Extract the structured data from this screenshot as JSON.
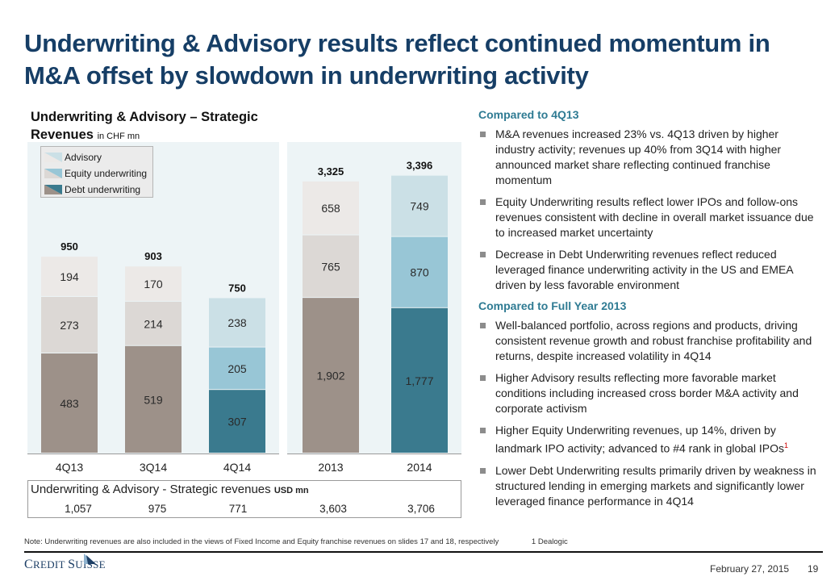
{
  "title": "Underwriting & Advisory results reflect continued momentum in M&A offset by slowdown in underwriting activity",
  "chart_title": "Underwriting & Advisory – Strategic Revenues",
  "chart_unit": "in CHF mn",
  "legend": [
    {
      "label": "Advisory"
    },
    {
      "label": "Equity underwriting"
    },
    {
      "label": "Debt underwriting"
    }
  ],
  "colors": {
    "debt_gray": "#9d9189",
    "equity_gray": "#dcd8d5",
    "advisory_gray": "#ece9e7",
    "debt_blue": "#3a7a8e",
    "equity_blue": "#98c6d6",
    "advisory_blue": "#cbe0e6",
    "panel_bg": "#edf4f6",
    "title_navy": "#163e66",
    "section_teal": "#2f7b93"
  },
  "chart_data": {
    "type": "bar",
    "stacked": true,
    "title": "Underwriting & Advisory – Strategic Revenues in CHF mn",
    "xlabel": "",
    "ylabel": "",
    "categories": [
      "4Q13",
      "3Q14",
      "4Q14",
      "2013",
      "2014"
    ],
    "series": [
      {
        "name": "Debt underwriting",
        "values": [
          483,
          519,
          307,
          1902,
          1777
        ],
        "labels": [
          "483",
          "519",
          "307",
          "1,902",
          "1,777"
        ]
      },
      {
        "name": "Equity underwriting",
        "values": [
          273,
          214,
          205,
          765,
          870
        ],
        "labels": [
          "273",
          "214",
          "205",
          "765",
          "870"
        ]
      },
      {
        "name": "Advisory",
        "values": [
          194,
          170,
          238,
          658,
          749
        ],
        "labels": [
          "194",
          "170",
          "238",
          "658",
          "749"
        ]
      }
    ],
    "totals": [
      950,
      903,
      750,
      3325,
      3396
    ],
    "total_labels": [
      "950",
      "903",
      "750",
      "3,325",
      "3,396"
    ],
    "panels": [
      {
        "name": "quarterly",
        "categories": [
          "4Q13",
          "3Q14",
          "4Q14"
        ],
        "ylim": [
          0,
          1000
        ]
      },
      {
        "name": "annual",
        "categories": [
          "2013",
          "2014"
        ],
        "ylim": [
          0,
          3700
        ]
      }
    ],
    "highlighted": [
      "4Q14",
      "2014"
    ],
    "grid": false,
    "legend_position": "top-left"
  },
  "usd_table": {
    "title": "Underwriting & Advisory - Strategic revenues",
    "unit": "USD mn",
    "values": [
      "1,057",
      "975",
      "771",
      "3,603",
      "3,706"
    ]
  },
  "commentary": {
    "sections": [
      {
        "heading": "Compared to 4Q13",
        "bullets": [
          "M&A revenues increased 23% vs. 4Q13 driven by higher industry activity; revenues up 40% from 3Q14 with higher announced market share reflecting continued franchise momentum",
          "Equity Underwriting results reflect lower IPOs and follow-ons revenues consistent with decline in overall market issuance due to increased market uncertainty",
          "Decrease in Debt Underwriting revenues reflect reduced leveraged finance underwriting activity in the US and EMEA driven by less favorable environment"
        ]
      },
      {
        "heading": "Compared to Full Year 2013",
        "bullets": [
          "Well-balanced portfolio, across regions and products, driving consistent revenue growth and robust franchise profitability and returns, despite increased volatility in 4Q14",
          "Higher Advisory results reflecting more favorable market conditions including increased cross border M&A activity and corporate activism",
          "Higher Equity Underwriting revenues, up 14%, driven by landmark IPO activity; advanced to #4 rank in global IPOs",
          "Lower Debt Underwriting results primarily driven by weakness in structured lending in emerging markets and significantly lower leveraged finance performance in 4Q14"
        ],
        "footnote_marker": "1"
      }
    ]
  },
  "footer": {
    "note": "Note: Underwriting revenues are also included in the views of Fixed Income and Equity franchise revenues on slides 17 and 18, respectively",
    "footnote": "1 Dealogic",
    "logo_text_c": "C",
    "logo_text_redit": "REDIT ",
    "logo_text_s": "S",
    "logo_text_uisse": "UISSE",
    "date": "February 27, 2015",
    "page": "19"
  }
}
